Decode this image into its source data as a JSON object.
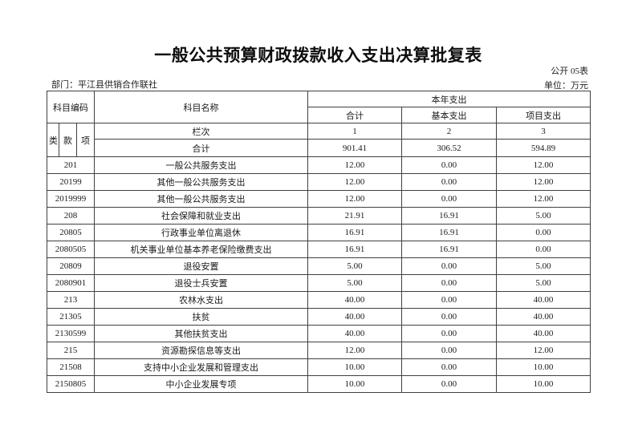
{
  "page": {
    "title": "一般公共预算财政拨款收入支出决算批复表",
    "table_no": "公开 05表",
    "department": "部门：平江县供销合作联社",
    "unit": "单位：万元"
  },
  "table": {
    "header": {
      "subject_code": "科目编码",
      "subject_name": "科目名称",
      "current_year_expenditure": "本年支出",
      "total": "合计",
      "basic_expenditure": "基本支出",
      "project_expenditure": "项目支出",
      "class": "类",
      "section": "款",
      "item": "项",
      "column_index_label": "栏次",
      "column_numbers": [
        "1",
        "2",
        "3"
      ],
      "grand_total_label": "合计"
    },
    "grand_total": {
      "total": "901.41",
      "basic": "306.52",
      "project": "594.89"
    },
    "rows": [
      {
        "code": "201",
        "name": "一般公共服务支出",
        "total": "12.00",
        "basic": "0.00",
        "project": "12.00"
      },
      {
        "code": "20199",
        "name": "其他一般公共服务支出",
        "total": "12.00",
        "basic": "0.00",
        "project": "12.00"
      },
      {
        "code": "2019999",
        "name": "其他一般公共服务支出",
        "total": "12.00",
        "basic": "0.00",
        "project": "12.00"
      },
      {
        "code": "208",
        "name": "社会保障和就业支出",
        "total": "21.91",
        "basic": "16.91",
        "project": "5.00"
      },
      {
        "code": "20805",
        "name": "行政事业单位离退休",
        "total": "16.91",
        "basic": "16.91",
        "project": "0.00"
      },
      {
        "code": "2080505",
        "name": "机关事业单位基本养老保险缴费支出",
        "total": "16.91",
        "basic": "16.91",
        "project": "0.00"
      },
      {
        "code": "20809",
        "name": "退役安置",
        "total": "5.00",
        "basic": "0.00",
        "project": "5.00"
      },
      {
        "code": "2080901",
        "name": "退役士兵安置",
        "total": "5.00",
        "basic": "0.00",
        "project": "5.00"
      },
      {
        "code": "213",
        "name": "农林水支出",
        "total": "40.00",
        "basic": "0.00",
        "project": "40.00"
      },
      {
        "code": "21305",
        "name": "扶贫",
        "total": "40.00",
        "basic": "0.00",
        "project": "40.00"
      },
      {
        "code": "2130599",
        "name": "其他扶贫支出",
        "total": "40.00",
        "basic": "0.00",
        "project": "40.00"
      },
      {
        "code": "215",
        "name": "资源勘探信息等支出",
        "total": "12.00",
        "basic": "0.00",
        "project": "12.00"
      },
      {
        "code": "21508",
        "name": "支持中小企业发展和管理支出",
        "total": "10.00",
        "basic": "0.00",
        "project": "10.00"
      },
      {
        "code": "2150805",
        "name": "中小企业发展专项",
        "total": "10.00",
        "basic": "0.00",
        "project": "10.00"
      }
    ]
  }
}
